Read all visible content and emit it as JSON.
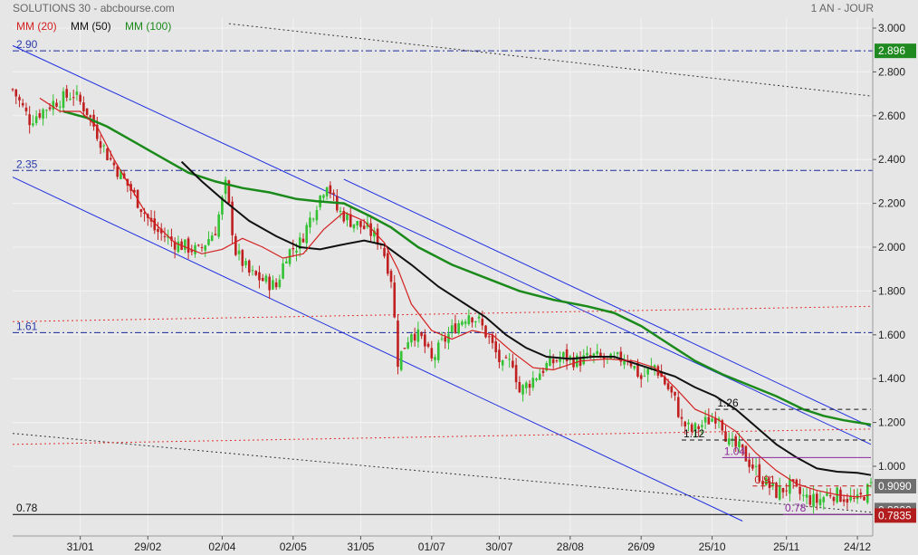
{
  "header": {
    "title": "SOLUTIONS 30 - abcbourse.com",
    "period": "1 AN - JOUR"
  },
  "legend": [
    {
      "label": "MM (20)",
      "color": "#d42020"
    },
    {
      "label": "MM (50)",
      "color": "#111111"
    },
    {
      "label": "MM (100)",
      "color": "#1a8a1a"
    }
  ],
  "colors": {
    "background": "#e6e6e6",
    "up_candle": "#34c234",
    "down_candle": "#c02020",
    "channel": "#2030e0",
    "support_line": "#1a2a9a",
    "price_badge": "#1f8a1f",
    "low_badge": "#b21c1c",
    "last_badge": "#6f6f6f"
  },
  "chart_data": {
    "type": "candlestick",
    "title": "SOLUTIONS 30",
    "ylim": [
      0.74,
      3.05
    ],
    "y_ticks": [
      "3.000",
      "2.800",
      "2.600",
      "2.400",
      "2.200",
      "2.000",
      "1.800",
      "1.600",
      "1.400",
      "1.200",
      "1.000"
    ],
    "y_tick_values": [
      3.0,
      2.8,
      2.6,
      2.4,
      2.2,
      2.0,
      1.8,
      1.6,
      1.4,
      1.2,
      1.0
    ],
    "x_ticks": [
      "31/01",
      "29/02",
      "02/04",
      "02/05",
      "31/05",
      "01/07",
      "30/07",
      "28/08",
      "26/09",
      "25/10",
      "25/11",
      "24/12"
    ],
    "x_tick_index": [
      20,
      40,
      62,
      83,
      103,
      124,
      144,
      165,
      186,
      207,
      229,
      250
    ],
    "n_sessions": 255,
    "price_path": [
      [
        0,
        2.72
      ],
      [
        5,
        2.58
      ],
      [
        12,
        2.66
      ],
      [
        18,
        2.7
      ],
      [
        22,
        2.62
      ],
      [
        28,
        2.42
      ],
      [
        35,
        2.26
      ],
      [
        42,
        2.08
      ],
      [
        48,
        2.02
      ],
      [
        55,
        1.98
      ],
      [
        60,
        2.08
      ],
      [
        63,
        2.28
      ],
      [
        66,
        1.98
      ],
      [
        70,
        1.88
      ],
      [
        74,
        1.85
      ],
      [
        78,
        1.82
      ],
      [
        81,
        1.97
      ],
      [
        85,
        2.02
      ],
      [
        90,
        2.2
      ],
      [
        93,
        2.3
      ],
      [
        96,
        2.17
      ],
      [
        100,
        2.12
      ],
      [
        105,
        2.08
      ],
      [
        109,
        2.02
      ],
      [
        112,
        1.86
      ],
      [
        114,
        1.48
      ],
      [
        118,
        1.62
      ],
      [
        121,
        1.58
      ],
      [
        124,
        1.48
      ],
      [
        127,
        1.56
      ],
      [
        131,
        1.64
      ],
      [
        135,
        1.7
      ],
      [
        138,
        1.66
      ],
      [
        141,
        1.58
      ],
      [
        145,
        1.45
      ],
      [
        148,
        1.48
      ],
      [
        150,
        1.34
      ],
      [
        154,
        1.4
      ],
      [
        158,
        1.46
      ],
      [
        163,
        1.5
      ],
      [
        167,
        1.48
      ],
      [
        172,
        1.5
      ],
      [
        177,
        1.48
      ],
      [
        182,
        1.5
      ],
      [
        186,
        1.4
      ],
      [
        190,
        1.46
      ],
      [
        193,
        1.38
      ],
      [
        196,
        1.3
      ],
      [
        198,
        1.2
      ],
      [
        201,
        1.16
      ],
      [
        205,
        1.2
      ],
      [
        209,
        1.24
      ],
      [
        212,
        1.1
      ],
      [
        215,
        1.08
      ],
      [
        218,
        1.02
      ],
      [
        221,
        0.96
      ],
      [
        223,
        0.92
      ],
      [
        226,
        0.88
      ],
      [
        230,
        0.91
      ],
      [
        234,
        0.86
      ],
      [
        238,
        0.84
      ],
      [
        242,
        0.88
      ],
      [
        246,
        0.86
      ],
      [
        250,
        0.84
      ],
      [
        254,
        0.909
      ]
    ],
    "ma20_path": [
      [
        8,
        2.68
      ],
      [
        14,
        2.62
      ],
      [
        20,
        2.62
      ],
      [
        25,
        2.55
      ],
      [
        30,
        2.4
      ],
      [
        40,
        2.14
      ],
      [
        48,
        2.02
      ],
      [
        56,
        1.97
      ],
      [
        62,
        1.99
      ],
      [
        68,
        2.04
      ],
      [
        74,
        2.0
      ],
      [
        80,
        1.95
      ],
      [
        86,
        1.97
      ],
      [
        92,
        2.08
      ],
      [
        98,
        2.16
      ],
      [
        104,
        2.12
      ],
      [
        110,
        2.02
      ],
      [
        114,
        1.9
      ],
      [
        118,
        1.74
      ],
      [
        124,
        1.62
      ],
      [
        130,
        1.58
      ],
      [
        136,
        1.62
      ],
      [
        142,
        1.6
      ],
      [
        148,
        1.52
      ],
      [
        154,
        1.45
      ],
      [
        160,
        1.44
      ],
      [
        168,
        1.48
      ],
      [
        176,
        1.49
      ],
      [
        184,
        1.48
      ],
      [
        190,
        1.45
      ],
      [
        196,
        1.36
      ],
      [
        202,
        1.26
      ],
      [
        208,
        1.22
      ],
      [
        214,
        1.16
      ],
      [
        220,
        1.06
      ],
      [
        226,
        0.98
      ],
      [
        232,
        0.92
      ],
      [
        238,
        0.89
      ],
      [
        244,
        0.87
      ],
      [
        250,
        0.86
      ],
      [
        254,
        0.87
      ]
    ],
    "ma50_path": [
      [
        50,
        2.39
      ],
      [
        56,
        2.3
      ],
      [
        62,
        2.22
      ],
      [
        70,
        2.12
      ],
      [
        78,
        2.05
      ],
      [
        85,
        2.0
      ],
      [
        91,
        1.99
      ],
      [
        97,
        2.01
      ],
      [
        104,
        2.03
      ],
      [
        110,
        2.01
      ],
      [
        118,
        1.92
      ],
      [
        126,
        1.82
      ],
      [
        134,
        1.74
      ],
      [
        140,
        1.68
      ],
      [
        146,
        1.6
      ],
      [
        152,
        1.54
      ],
      [
        158,
        1.5
      ],
      [
        165,
        1.49
      ],
      [
        172,
        1.5
      ],
      [
        178,
        1.5
      ],
      [
        184,
        1.47
      ],
      [
        190,
        1.44
      ],
      [
        196,
        1.41
      ],
      [
        202,
        1.36
      ],
      [
        208,
        1.32
      ],
      [
        214,
        1.26
      ],
      [
        220,
        1.18
      ],
      [
        226,
        1.1
      ],
      [
        232,
        1.04
      ],
      [
        238,
        0.99
      ],
      [
        244,
        0.975
      ],
      [
        250,
        0.97
      ],
      [
        254,
        0.96
      ]
    ],
    "ma100_path": [
      [
        15,
        2.62
      ],
      [
        22,
        2.59
      ],
      [
        28,
        2.55
      ],
      [
        36,
        2.48
      ],
      [
        44,
        2.41
      ],
      [
        52,
        2.34
      ],
      [
        60,
        2.3
      ],
      [
        68,
        2.27
      ],
      [
        76,
        2.25
      ],
      [
        84,
        2.22
      ],
      [
        90,
        2.21
      ],
      [
        98,
        2.2
      ],
      [
        106,
        2.14
      ],
      [
        112,
        2.09
      ],
      [
        120,
        2.0
      ],
      [
        130,
        1.92
      ],
      [
        140,
        1.86
      ],
      [
        150,
        1.8
      ],
      [
        160,
        1.76
      ],
      [
        170,
        1.73
      ],
      [
        178,
        1.7
      ],
      [
        186,
        1.64
      ],
      [
        194,
        1.56
      ],
      [
        202,
        1.48
      ],
      [
        210,
        1.42
      ],
      [
        218,
        1.37
      ],
      [
        226,
        1.32
      ],
      [
        234,
        1.26
      ],
      [
        240,
        1.23
      ],
      [
        246,
        1.21
      ],
      [
        254,
        1.19
      ]
    ],
    "horizontal_levels": [
      {
        "value": 2.896,
        "label": "2.90",
        "style": "dash-dot",
        "color": "#1a2a9a"
      },
      {
        "value": 2.35,
        "label": "2.35",
        "style": "dash-dot",
        "color": "#1a2a9a"
      },
      {
        "value": 1.61,
        "label": "1.61",
        "style": "dash-dot",
        "color": "#1a2a9a"
      },
      {
        "value": 0.78,
        "label": "0.78",
        "style": "solid",
        "color": "#000000"
      }
    ],
    "trendlines": [
      {
        "from": [
          0,
          2.92
        ],
        "to": [
          254,
          1.1
        ],
        "color": "#2030e0",
        "style": "solid"
      },
      {
        "from": [
          0,
          2.32
        ],
        "to": [
          216,
          0.75
        ],
        "color": "#2030e0",
        "style": "solid"
      },
      {
        "from": [
          98,
          2.31
        ],
        "to": [
          254,
          1.18
        ],
        "color": "#2030e0",
        "style": "solid"
      },
      {
        "from": [
          64,
          3.02
        ],
        "to": [
          254,
          2.69
        ],
        "color": "#333333",
        "style": "dotted"
      },
      {
        "from": [
          0,
          1.15
        ],
        "to": [
          254,
          0.79
        ],
        "color": "#333333",
        "style": "dotted"
      },
      {
        "from": [
          0,
          1.66
        ],
        "to": [
          254,
          1.73
        ],
        "color": "#e03030",
        "style": "dotted"
      },
      {
        "from": [
          0,
          1.1
        ],
        "to": [
          254,
          1.17
        ],
        "color": "#e03030",
        "style": "dotted"
      }
    ],
    "annotated_levels": [
      {
        "value": 1.26,
        "label": "1.26",
        "from": 208,
        "to": 254,
        "color": "#111111",
        "style": "dashed"
      },
      {
        "value": 1.12,
        "label": "1.12",
        "from": 198,
        "to": 254,
        "color": "#111111",
        "style": "dashed"
      },
      {
        "value": 1.04,
        "label": "1.04",
        "from": 210,
        "to": 254,
        "color": "#8a2a9a",
        "style": "solid"
      },
      {
        "value": 0.91,
        "label": "0.91",
        "from": 219,
        "to": 254,
        "color": "#c01818",
        "style": "dashed"
      },
      {
        "value": 0.78,
        "label": "0.78",
        "from": 228,
        "to": 254,
        "color": "#8a2a9a",
        "style": "solid"
      }
    ],
    "price_badges": [
      {
        "value": 2.896,
        "label": "2.896",
        "role": "level"
      },
      {
        "value": 0.909,
        "label": "0.9090",
        "role": "last"
      },
      {
        "value": 0.8,
        "label": "0.8000",
        "role": "partially hidden"
      },
      {
        "value": 0.7835,
        "label": "0.7835",
        "role": "low"
      }
    ],
    "grid": true
  }
}
